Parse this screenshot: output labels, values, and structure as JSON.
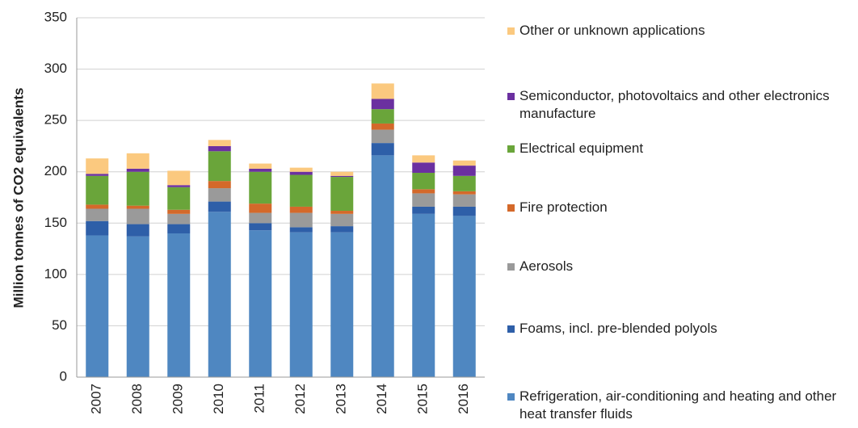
{
  "chart_data": {
    "type": "stacked_bar",
    "y_label": "Million tonnes of CO2 equivalents",
    "categories": [
      "2007",
      "2008",
      "2009",
      "2010",
      "2011",
      "2012",
      "2013",
      "2014",
      "2015",
      "2016"
    ],
    "series": [
      {
        "name": "Refrigeration, air-conditioning and heating and other heat transfer fluids",
        "color": "#4f87c1",
        "values": [
          138,
          137,
          140,
          161,
          143,
          141,
          141,
          216,
          159,
          157
        ]
      },
      {
        "name": "Foams, incl. pre-blended polyols",
        "color": "#2e5fa8",
        "values": [
          14,
          12,
          9,
          10,
          7,
          5,
          6,
          12,
          7,
          9
        ]
      },
      {
        "name": "Aerosols",
        "color": "#9a9a9a",
        "values": [
          12,
          15,
          10,
          13,
          10,
          14,
          12,
          13,
          13,
          12
        ]
      },
      {
        "name": "Fire protection",
        "color": "#d4692a",
        "values": [
          4,
          3,
          4,
          7,
          9,
          6,
          3,
          6,
          4,
          3
        ]
      },
      {
        "name": "Electrical equipment",
        "color": "#6aa53a",
        "values": [
          28,
          33,
          22,
          29,
          31,
          31,
          33,
          14,
          16,
          15
        ]
      },
      {
        "name": "Semiconductor, photovoltaics and other electronics manufacture",
        "color": "#6b30a0",
        "values": [
          2,
          3,
          2,
          5,
          3,
          3,
          1,
          10,
          10,
          10
        ]
      },
      {
        "name": "Other or unknown applications",
        "color": "#fbc97f",
        "values": [
          15,
          15,
          14,
          6,
          5,
          4,
          4,
          15,
          7,
          5
        ]
      }
    ],
    "ylim": [
      0,
      350
    ],
    "yticks": [
      0,
      50,
      100,
      150,
      200,
      250,
      300,
      350
    ],
    "grid": true,
    "legend": "right"
  }
}
